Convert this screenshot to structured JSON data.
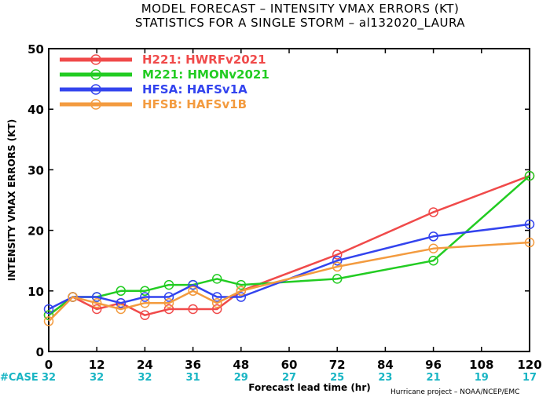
{
  "title_line1": "MODEL FORECAST – INTENSITY VMAX ERRORS (KT)",
  "title_line2": "STATISTICS FOR A SINGLE STORM – al132020_LAURA",
  "case_label": "#CASE",
  "credit": "Hurricane project – NOAA/NCEP/EMC",
  "chart_data": {
    "type": "line",
    "title": "MODEL FORECAST – INTENSITY VMAX ERRORS (KT)",
    "subtitle": "STATISTICS FOR A SINGLE STORM – al132020_LAURA",
    "xlabel": "Forecast lead time (hr)",
    "ylabel": "INTENSITY VMAX ERRORS (KT)",
    "xlim": [
      0,
      120
    ],
    "ylim": [
      0,
      50
    ],
    "xticks": [
      0,
      12,
      24,
      36,
      48,
      60,
      72,
      84,
      96,
      108,
      120
    ],
    "yticks": [
      0,
      10,
      20,
      30,
      40,
      50
    ],
    "grid": false,
    "legend_position": "top-left",
    "case_counts": {
      "x": [
        0,
        12,
        24,
        36,
        48,
        60,
        72,
        84,
        96,
        108,
        120
      ],
      "values": [
        32,
        32,
        32,
        31,
        29,
        27,
        25,
        23,
        21,
        19,
        17
      ]
    },
    "series": [
      {
        "name": "H221: HWRFv2021",
        "color": "#f04a4a",
        "x": [
          0,
          6,
          12,
          18,
          24,
          30,
          36,
          42,
          48,
          72,
          96,
          120
        ],
        "y": [
          6,
          9,
          7,
          8,
          6,
          7,
          7,
          7,
          10,
          16,
          23,
          29
        ]
      },
      {
        "name": "M221: HMONv2021",
        "color": "#22cc22",
        "x": [
          0,
          6,
          12,
          18,
          24,
          30,
          36,
          42,
          48,
          72,
          96,
          120
        ],
        "y": [
          6,
          9,
          9,
          10,
          10,
          11,
          11,
          12,
          11,
          12,
          15,
          29
        ]
      },
      {
        "name": "HFSA: HAFSv1A",
        "color": "#3344ee",
        "x": [
          0,
          6,
          12,
          18,
          24,
          30,
          36,
          42,
          48,
          72,
          96,
          120
        ],
        "y": [
          7,
          9,
          9,
          8,
          9,
          9,
          11,
          9,
          9,
          15,
          19,
          21
        ]
      },
      {
        "name": "HFSB: HAFSv1B",
        "color": "#f39b3f",
        "x": [
          0,
          6,
          12,
          18,
          24,
          30,
          36,
          42,
          48,
          72,
          96,
          120
        ],
        "y": [
          5,
          9,
          8,
          7,
          8,
          8,
          10,
          8,
          10,
          14,
          17,
          18
        ]
      }
    ]
  }
}
